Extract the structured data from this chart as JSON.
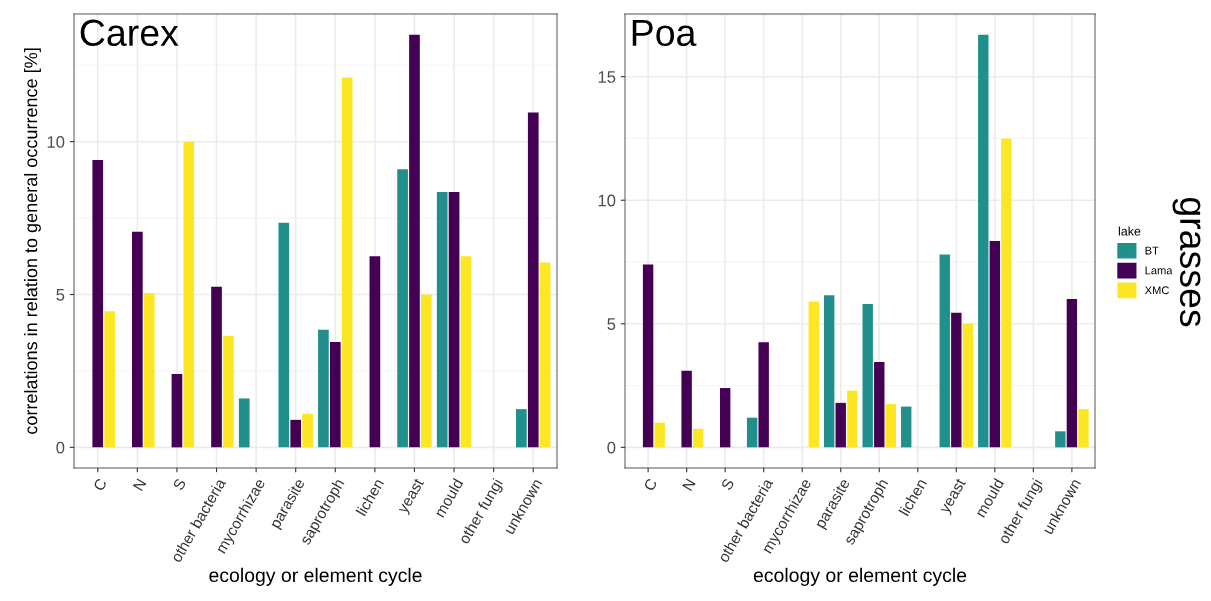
{
  "chart_data": [
    {
      "type": "bar",
      "title": "Carex",
      "xlabel": "ecology or element cycle",
      "ylabel": "correlations in relation to general occurrence [%]",
      "categories": [
        "C",
        "N",
        "S",
        "other bacteria",
        "mycorrhizae",
        "parasite",
        "saprotroph",
        "lichen",
        "yeast",
        "mould",
        "other fungi",
        "unknown"
      ],
      "series": [
        {
          "name": "BT",
          "color": "#21908c",
          "values": [
            null,
            null,
            null,
            null,
            1.6,
            7.35,
            3.85,
            null,
            9.1,
            8.35,
            null,
            1.25
          ]
        },
        {
          "name": "Lama",
          "color": "#440154",
          "values": [
            9.4,
            7.05,
            2.4,
            5.25,
            null,
            0.9,
            3.45,
            6.25,
            13.5,
            8.35,
            null,
            10.95
          ]
        },
        {
          "name": "XMC",
          "color": "#fde725",
          "values": [
            4.45,
            5.05,
            10.0,
            3.65,
            null,
            1.1,
            12.1,
            null,
            5.0,
            6.25,
            null,
            6.05
          ]
        }
      ],
      "ylim": [
        -0.675,
        14.175
      ],
      "yticks": [
        0,
        5,
        10
      ],
      "grid": true,
      "legend_title": "lake",
      "legend": "right"
    },
    {
      "type": "bar",
      "title": "Poa",
      "xlabel": "ecology or element cycle",
      "annotations": [
        "grasses"
      ],
      "categories": [
        "C",
        "N",
        "S",
        "other bacteria",
        "mycorrhizae",
        "parasite",
        "saprotroph",
        "lichen",
        "yeast",
        "mould",
        "other fungi",
        "unknown"
      ],
      "series": [
        {
          "color": "#21908c",
          "values": [
            null,
            null,
            null,
            1.2,
            null,
            6.15,
            5.8,
            1.65,
            7.8,
            16.7,
            null,
            0.65
          ]
        },
        {
          "color": "#440154",
          "values": [
            7.4,
            3.1,
            2.4,
            4.25,
            null,
            1.8,
            3.45,
            null,
            5.45,
            8.35,
            null,
            6.0
          ]
        },
        {
          "color": "#fde725",
          "values": [
            1.0,
            0.75,
            null,
            null,
            5.9,
            2.3,
            1.75,
            null,
            5.0,
            12.5,
            null,
            1.55
          ]
        }
      ],
      "ylim": [
        -0.835,
        17.535
      ],
      "yticks": [
        0,
        5,
        10,
        15
      ],
      "grid": true
    }
  ]
}
